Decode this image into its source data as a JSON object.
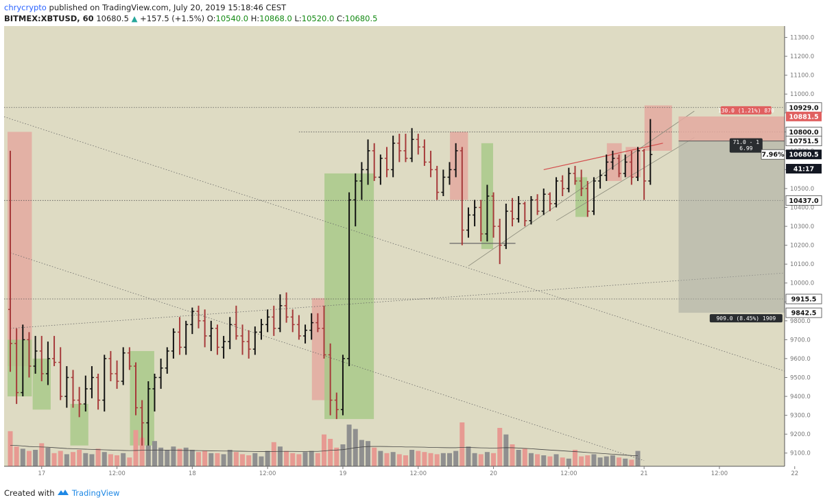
{
  "header": {
    "author": "chrycrypto",
    "published": "published on TradingView.com, July 20, 2019 15:18:46 CEST",
    "symbol": "BITMEX:XBTUSD, 60",
    "last": "10680.5",
    "change_arrow": "▲",
    "change": "+157.5 (+1.5%)",
    "o_label": "O:",
    "o": "10540.0",
    "h_label": "H:",
    "h": "10868.0",
    "l_label": "L:",
    "l": "10520.0",
    "c_label": "C:",
    "c": "10680.5"
  },
  "footer": {
    "created_with": "Created with",
    "brand": "TradingView",
    "logo_icon": "tradingview-logo-icon"
  },
  "colors": {
    "chart_bg": "#dedbc3",
    "bull": "#111111",
    "bear": "#a63a3a",
    "vol_bear": "#e79a92",
    "vol_bull": "#8f8f8f",
    "green_zone": "#a9c98a",
    "red_zone": "#e4a9a0",
    "stop_label": "#e06060",
    "dark_label": "#2a2d30"
  },
  "chart_data": {
    "type": "ohlc",
    "symbol": "BITMEX:XBTUSD",
    "timeframe": "60",
    "price_axis": {
      "range": [
        9030,
        11360
      ],
      "ticks": [
        "9100.0",
        "9200.0",
        "9300.0",
        "9400.0",
        "9500.0",
        "9600.0",
        "9700.0",
        "9800.0",
        "9900.0",
        "10000.0",
        "10100.0",
        "10200.0",
        "10300.0",
        "10400.0",
        "10500.0",
        "10600.0",
        "10700.0",
        "10800.0",
        "10900.0",
        "11000.0",
        "11100.0",
        "11200.0",
        "11300.0"
      ],
      "price_labels": [
        {
          "text": "10929.0",
          "value": 10929.0,
          "style": "white"
        },
        {
          "text": "10881.5",
          "value": 10881.5,
          "style": "red"
        },
        {
          "text": "10800.0",
          "value": 10800.0,
          "style": "white"
        },
        {
          "text": "10751.5",
          "value": 10751.5,
          "style": "white"
        },
        {
          "text": "10680.5",
          "value": 10680.5,
          "style": "dark"
        },
        {
          "text": "41:17",
          "value": 10605,
          "style": "dark"
        },
        {
          "text": "10437.0",
          "value": 10437.0,
          "style": "white"
        },
        {
          "text": "9915.5",
          "value": 9915.5,
          "style": "white"
        },
        {
          "text": "9842.5",
          "value": 9842.5,
          "style": "white"
        }
      ],
      "pct_label": "7.96%"
    },
    "time_axis": {
      "start": "2019-07-16 19:00",
      "bar_step_hours": 1,
      "labels": [
        {
          "text": "17",
          "hour": 5
        },
        {
          "text": "12:00",
          "hour": 17
        },
        {
          "text": "18",
          "hour": 29
        },
        {
          "text": "12:00",
          "hour": 41
        },
        {
          "text": "19",
          "hour": 53
        },
        {
          "text": "12:00",
          "hour": 65
        },
        {
          "text": "20",
          "hour": 77
        },
        {
          "text": "12:00",
          "hour": 89
        },
        {
          "text": "21",
          "hour": 101
        },
        {
          "text": "12:00",
          "hour": 113
        },
        {
          "text": "22",
          "hour": 125
        },
        {
          "text": "12:00",
          "hour": 137
        }
      ]
    },
    "ohlc": [
      [
        9860,
        10700,
        9530,
        9680
      ],
      [
        9680,
        9760,
        9360,
        9420
      ],
      [
        9420,
        9780,
        9400,
        9700
      ],
      [
        9700,
        9740,
        9500,
        9560
      ],
      [
        9560,
        9720,
        9520,
        9640
      ],
      [
        9640,
        9720,
        9480,
        9520
      ],
      [
        9520,
        9690,
        9460,
        9600
      ],
      [
        9600,
        9720,
        9560,
        9580
      ],
      [
        9580,
        9660,
        9380,
        9400
      ],
      [
        9400,
        9560,
        9340,
        9500
      ],
      [
        9500,
        9540,
        9340,
        9380
      ],
      [
        9380,
        9450,
        9290,
        9360
      ],
      [
        9360,
        9510,
        9320,
        9440
      ],
      [
        9440,
        9560,
        9390,
        9500
      ],
      [
        9500,
        9520,
        9330,
        9380
      ],
      [
        9380,
        9620,
        9320,
        9600
      ],
      [
        9600,
        9640,
        9480,
        9520
      ],
      [
        9520,
        9590,
        9440,
        9480
      ],
      [
        9480,
        9660,
        9460,
        9630
      ],
      [
        9630,
        9660,
        9540,
        9560
      ],
      [
        9560,
        9580,
        9300,
        9340
      ],
      [
        9340,
        9380,
        9140,
        9260
      ],
      [
        9260,
        9480,
        9140,
        9440
      ],
      [
        9440,
        9520,
        9320,
        9500
      ],
      [
        9500,
        9600,
        9440,
        9550
      ],
      [
        9550,
        9660,
        9520,
        9640
      ],
      [
        9640,
        9760,
        9600,
        9740
      ],
      [
        9740,
        9820,
        9620,
        9660
      ],
      [
        9660,
        9800,
        9620,
        9780
      ],
      [
        9780,
        9870,
        9730,
        9850
      ],
      [
        9850,
        9880,
        9760,
        9800
      ],
      [
        9800,
        9860,
        9660,
        9720
      ],
      [
        9720,
        9800,
        9640,
        9760
      ],
      [
        9760,
        9780,
        9620,
        9660
      ],
      [
        9660,
        9720,
        9600,
        9690
      ],
      [
        9690,
        9820,
        9650,
        9780
      ],
      [
        9780,
        9880,
        9700,
        9720
      ],
      [
        9720,
        9780,
        9620,
        9690
      ],
      [
        9690,
        9750,
        9600,
        9650
      ],
      [
        9650,
        9770,
        9620,
        9740
      ],
      [
        9740,
        9810,
        9700,
        9780
      ],
      [
        9780,
        9860,
        9740,
        9820
      ],
      [
        9820,
        9880,
        9720,
        9760
      ],
      [
        9760,
        9940,
        9740,
        9880
      ],
      [
        9880,
        9950,
        9790,
        9820
      ],
      [
        9820,
        9860,
        9740,
        9780
      ],
      [
        9780,
        9830,
        9700,
        9720
      ],
      [
        9720,
        9780,
        9680,
        9750
      ],
      [
        9750,
        9840,
        9700,
        9790
      ],
      [
        9790,
        9840,
        9740,
        9760
      ],
      [
        9760,
        9880,
        9600,
        9620
      ],
      [
        9620,
        9680,
        9300,
        9380
      ],
      [
        9380,
        9420,
        9280,
        9330
      ],
      [
        9330,
        9620,
        9300,
        9600
      ],
      [
        9600,
        10480,
        9560,
        10440
      ],
      [
        10440,
        10580,
        10300,
        10540
      ],
      [
        10540,
        10640,
        10440,
        10600
      ],
      [
        10600,
        10760,
        10520,
        10700
      ],
      [
        10700,
        10740,
        10540,
        10560
      ],
      [
        10560,
        10680,
        10520,
        10660
      ],
      [
        10660,
        10720,
        10560,
        10600
      ],
      [
        10600,
        10780,
        10560,
        10740
      ],
      [
        10740,
        10790,
        10640,
        10700
      ],
      [
        10700,
        10790,
        10640,
        10660
      ],
      [
        10660,
        10820,
        10640,
        10760
      ],
      [
        10760,
        10790,
        10680,
        10720
      ],
      [
        10720,
        10760,
        10620,
        10640
      ],
      [
        10640,
        10700,
        10560,
        10600
      ],
      [
        10600,
        10620,
        10440,
        10480
      ],
      [
        10480,
        10600,
        10460,
        10560
      ],
      [
        10560,
        10640,
        10520,
        10600
      ],
      [
        10600,
        10740,
        10560,
        10700
      ],
      [
        10700,
        10720,
        10200,
        10280
      ],
      [
        10280,
        10400,
        10240,
        10360
      ],
      [
        10360,
        10440,
        10300,
        10400
      ],
      [
        10400,
        10440,
        10220,
        10260
      ],
      [
        10260,
        10520,
        10220,
        10460
      ],
      [
        10460,
        10480,
        10240,
        10300
      ],
      [
        10300,
        10340,
        10100,
        10200
      ],
      [
        10200,
        10420,
        10180,
        10380
      ],
      [
        10380,
        10450,
        10300,
        10340
      ],
      [
        10340,
        10460,
        10320,
        10420
      ],
      [
        10420,
        10430,
        10300,
        10330
      ],
      [
        10330,
        10460,
        10310,
        10440
      ],
      [
        10440,
        10470,
        10360,
        10380
      ],
      [
        10380,
        10500,
        10360,
        10470
      ],
      [
        10470,
        10480,
        10380,
        10420
      ],
      [
        10420,
        10560,
        10400,
        10540
      ],
      [
        10540,
        10570,
        10460,
        10500
      ],
      [
        10500,
        10610,
        10480,
        10580
      ],
      [
        10580,
        10620,
        10520,
        10540
      ],
      [
        10540,
        10600,
        10460,
        10500
      ],
      [
        10500,
        10540,
        10350,
        10380
      ],
      [
        10380,
        10560,
        10360,
        10540
      ],
      [
        10540,
        10600,
        10500,
        10570
      ],
      [
        10570,
        10680,
        10540,
        10640
      ],
      [
        10640,
        10700,
        10600,
        10660
      ],
      [
        10660,
        10680,
        10560,
        10580
      ],
      [
        10580,
        10680,
        10560,
        10640
      ],
      [
        10640,
        10700,
        10520,
        10560
      ],
      [
        10560,
        10720,
        10540,
        10700
      ],
      [
        10700,
        10710,
        10440,
        10540
      ],
      [
        10540,
        10868,
        10520,
        10680
      ]
    ],
    "volume": {
      "range": [
        0,
        5000
      ],
      "values": [
        3200,
        1800,
        1600,
        1400,
        1500,
        2100,
        1700,
        1200,
        1400,
        1100,
        1300,
        1500,
        1200,
        1100,
        1600,
        1300,
        1100,
        1000,
        1200,
        800,
        3300,
        2600,
        1900,
        2300,
        1700,
        1500,
        1800,
        1600,
        1700,
        1500,
        1300,
        1400,
        1200,
        1200,
        1100,
        1500,
        1300,
        1100,
        1000,
        1200,
        900,
        1400,
        2200,
        1800,
        1400,
        1200,
        1100,
        1300,
        1400,
        1200,
        2900,
        2500,
        1700,
        2000,
        3800,
        3400,
        2400,
        2300,
        1700,
        1400,
        1200,
        1300,
        1100,
        1000,
        1500,
        1400,
        1300,
        1200,
        1100,
        1200,
        1200,
        1400,
        4000,
        1800,
        1200,
        1100,
        1300,
        1200,
        3500,
        2900,
        2000,
        1500,
        1600,
        1200,
        1100,
        1000,
        900,
        1100,
        800,
        700,
        1500,
        900,
        1000,
        1100,
        800,
        900,
        1000,
        800,
        700,
        600,
        1400
      ],
      "ma": [
        1900,
        1900,
        1850,
        1800,
        1780,
        1760,
        1740,
        1700,
        1660,
        1620,
        1600,
        1580,
        1560,
        1540,
        1520,
        1500,
        1480,
        1460,
        1440,
        1430,
        1440,
        1460,
        1470,
        1480,
        1480,
        1470,
        1460,
        1450,
        1450,
        1440,
        1430,
        1420,
        1410,
        1400,
        1390,
        1390,
        1380,
        1370,
        1360,
        1350,
        1340,
        1340,
        1350,
        1360,
        1360,
        1360,
        1350,
        1350,
        1360,
        1360,
        1400,
        1460,
        1480,
        1520,
        1600,
        1700,
        1760,
        1800,
        1810,
        1810,
        1800,
        1790,
        1780,
        1760,
        1760,
        1750,
        1740,
        1720,
        1710,
        1700,
        1690,
        1690,
        1720,
        1720,
        1700,
        1680,
        1670,
        1650,
        1680,
        1700,
        1690,
        1660,
        1630,
        1600,
        1560,
        1520,
        1480,
        1450,
        1410,
        1370,
        1340,
        1300,
        1260,
        1220,
        1180,
        1140,
        1100,
        1060,
        1020,
        980,
        960
      ]
    },
    "zones": [
      {
        "color": "red",
        "x0": 0,
        "x1": 3,
        "y0": 9560,
        "y1": 10800
      },
      {
        "color": "green",
        "x0": 0,
        "x1": 3,
        "y0": 9400,
        "y1": 9700
      },
      {
        "color": "green",
        "x0": 4,
        "x1": 6,
        "y0": 9330,
        "y1": 9600
      },
      {
        "color": "green",
        "x0": 10,
        "x1": 12,
        "y0": 9140,
        "y1": 9360
      },
      {
        "color": "green",
        "x0": 19.5,
        "x1": 22.5,
        "y0": 9140,
        "y1": 9640
      },
      {
        "color": "red",
        "x0": 48.5,
        "x1": 50.5,
        "y0": 9380,
        "y1": 9920
      },
      {
        "color": "green",
        "x0": 50.5,
        "x1": 57.5,
        "y0": 9280,
        "y1": 10580
      },
      {
        "color": "red",
        "x0": 70.5,
        "x1": 72.5,
        "y0": 10440,
        "y1": 10800
      },
      {
        "color": "green",
        "x0": 75.5,
        "x1": 76.5,
        "y0": 10180,
        "y1": 10740
      },
      {
        "color": "green",
        "x0": 90.5,
        "x1": 91.5,
        "y0": 10350,
        "y1": 10560
      },
      {
        "color": "red",
        "x0": 95.5,
        "x1": 97,
        "y0": 10540,
        "y1": 10740
      },
      {
        "color": "red",
        "x0": 98.5,
        "x1": 100,
        "y0": 10560,
        "y1": 10720
      },
      {
        "color": "red",
        "x0": 101.5,
        "x1": 105,
        "y0": 10700,
        "y1": 10940
      }
    ],
    "position": {
      "x0": 106.5,
      "x1": 128,
      "entry": 10751.5,
      "stop": 10881.5,
      "target": 9842.5,
      "stop_label": "130.0 (1.21%) 870",
      "ratio_label_line1": "71.0 - 1",
      "ratio_label_line2": "6.99",
      "target_label": "909.0 (8.45%) 1909"
    },
    "horizontal_lines": [
      {
        "value": 10929.0,
        "x0": -1,
        "x1": 130,
        "style": "dotted"
      },
      {
        "value": 10800.0,
        "x0": 46,
        "x1": 130,
        "style": "dotted"
      },
      {
        "value": 10437.0,
        "x0": -1,
        "x1": 130,
        "style": "dotted"
      },
      {
        "value": 9915.5,
        "x0": -1,
        "x1": 130,
        "style": "dotted"
      },
      {
        "value": 10210.0,
        "x0": 70,
        "x1": 80.5,
        "style": "solid"
      }
    ],
    "trend_lines": [
      {
        "from": [
          -1,
          10880
        ],
        "to": [
          145,
          9300
        ],
        "style": "dotted"
      },
      {
        "from": [
          0,
          10160
        ],
        "to": [
          101,
          9060
        ],
        "style": "dotted"
      },
      {
        "from": [
          0,
          9760
        ],
        "to": [
          160,
          10140
        ],
        "style": "dotted"
      },
      {
        "from": [
          73,
          10090
        ],
        "to": [
          109,
          10910
        ],
        "style": "thin"
      },
      {
        "from": [
          87,
          10330
        ],
        "to": [
          109,
          10770
        ],
        "style": "thin"
      },
      {
        "from": [
          85,
          10600
        ],
        "to": [
          104,
          10740
        ],
        "style": "red"
      }
    ]
  }
}
